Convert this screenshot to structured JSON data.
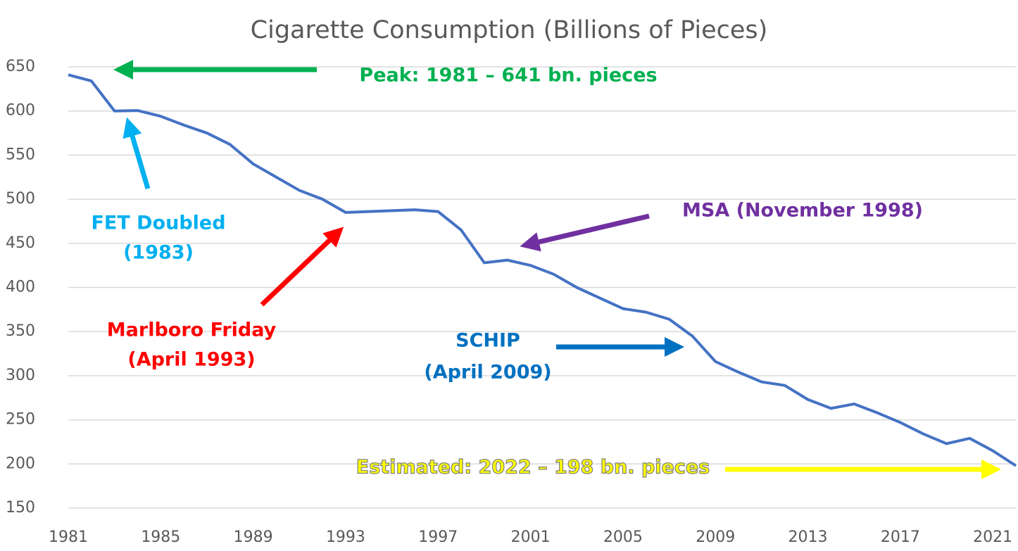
{
  "chart_data": {
    "type": "line",
    "title": "Cigarette Consumption (Billions of Pieces)",
    "x": [
      1981,
      1982,
      1983,
      1984,
      1985,
      1986,
      1987,
      1988,
      1989,
      1990,
      1991,
      1992,
      1993,
      1994,
      1995,
      1996,
      1997,
      1998,
      1999,
      2000,
      2001,
      2002,
      2003,
      2004,
      2005,
      2006,
      2007,
      2008,
      2009,
      2010,
      2011,
      2012,
      2013,
      2014,
      2015,
      2016,
      2017,
      2018,
      2019,
      2020,
      2021,
      2022
    ],
    "values": [
      641,
      634,
      600,
      600.5,
      594,
      584,
      575,
      562,
      540,
      525,
      510,
      500,
      485,
      486,
      487,
      488,
      486,
      465,
      428,
      431,
      425,
      415,
      400,
      388,
      376,
      372,
      364,
      345,
      316,
      304,
      293,
      289,
      273,
      263,
      268,
      258,
      247,
      234,
      223,
      229,
      215,
      198
    ],
    "color": "#4472c4",
    "xlim": [
      1981,
      2022
    ],
    "xticks": [
      1981,
      1985,
      1989,
      1993,
      1997,
      2001,
      2005,
      2009,
      2013,
      2017,
      2021
    ],
    "ylim": [
      150,
      650
    ],
    "yticks": [
      150,
      200,
      250,
      300,
      350,
      400,
      450,
      500,
      550,
      600,
      650
    ],
    "grid": true,
    "annotations": [
      {
        "lines": [
          "Peak: 1981 – 641 bn. pieces"
        ],
        "color": "#00b050"
      },
      {
        "lines": [
          "FET Doubled",
          "(1983)"
        ],
        "color": "#00b0f0"
      },
      {
        "lines": [
          "Marlboro Friday",
          "(April 1993)"
        ],
        "color": "#ff0000"
      },
      {
        "lines": [
          "MSA (November 1998)"
        ],
        "color": "#7030a0"
      },
      {
        "lines": [
          "SCHIP",
          "(April 2009)"
        ],
        "color": "#0070c0"
      },
      {
        "lines": [
          "Estimated: 2022 – 198 bn. pieces"
        ],
        "color": "#ffff00"
      }
    ]
  }
}
